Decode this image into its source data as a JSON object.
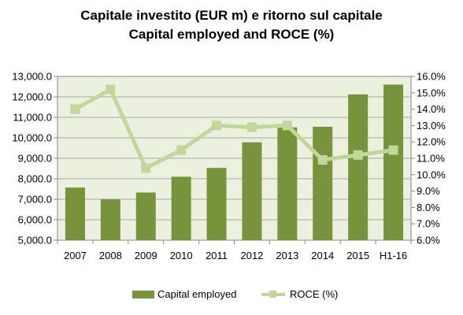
{
  "chart_data": {
    "type": "bar+line",
    "title": "Capitale investito (EUR m) e ritorno sul capitale",
    "subtitle": "Capital employed and ROCE (%)",
    "categories": [
      "2007",
      "2008",
      "2009",
      "2010",
      "2011",
      "2012",
      "2013",
      "2014",
      "2015",
      "H1-16"
    ],
    "series": [
      {
        "name": "Capital employed",
        "type": "bar",
        "axis": "left",
        "color": "#77933c",
        "values": [
          7570,
          6990,
          7330,
          8100,
          8530,
          9780,
          10510,
          10540,
          12120,
          12600
        ]
      },
      {
        "name": "ROCE (%)",
        "type": "line",
        "axis": "right",
        "color": "#c3d69b",
        "values": [
          14.0,
          15.2,
          10.4,
          11.5,
          13.0,
          12.9,
          13.0,
          10.9,
          11.2,
          11.5
        ]
      }
    ],
    "y_left": {
      "ylim": [
        5000,
        13000
      ],
      "ticks": [
        "5,000.0",
        "6,000.0",
        "7,000.0",
        "8,000.0",
        "9,000.0",
        "10,000.0",
        "11,000.0",
        "12,000.0",
        "13,000.0"
      ]
    },
    "y_right": {
      "ylim": [
        6,
        16
      ],
      "ticks": [
        "6.0%",
        "7.0%",
        "8.0%",
        "9.0%",
        "10.0%",
        "11.0%",
        "12.0%",
        "13.0%",
        "14.0%",
        "15.0%",
        "16.0%"
      ]
    },
    "plot_background": "#ebf1de",
    "grid": true,
    "legend": "bottom"
  }
}
